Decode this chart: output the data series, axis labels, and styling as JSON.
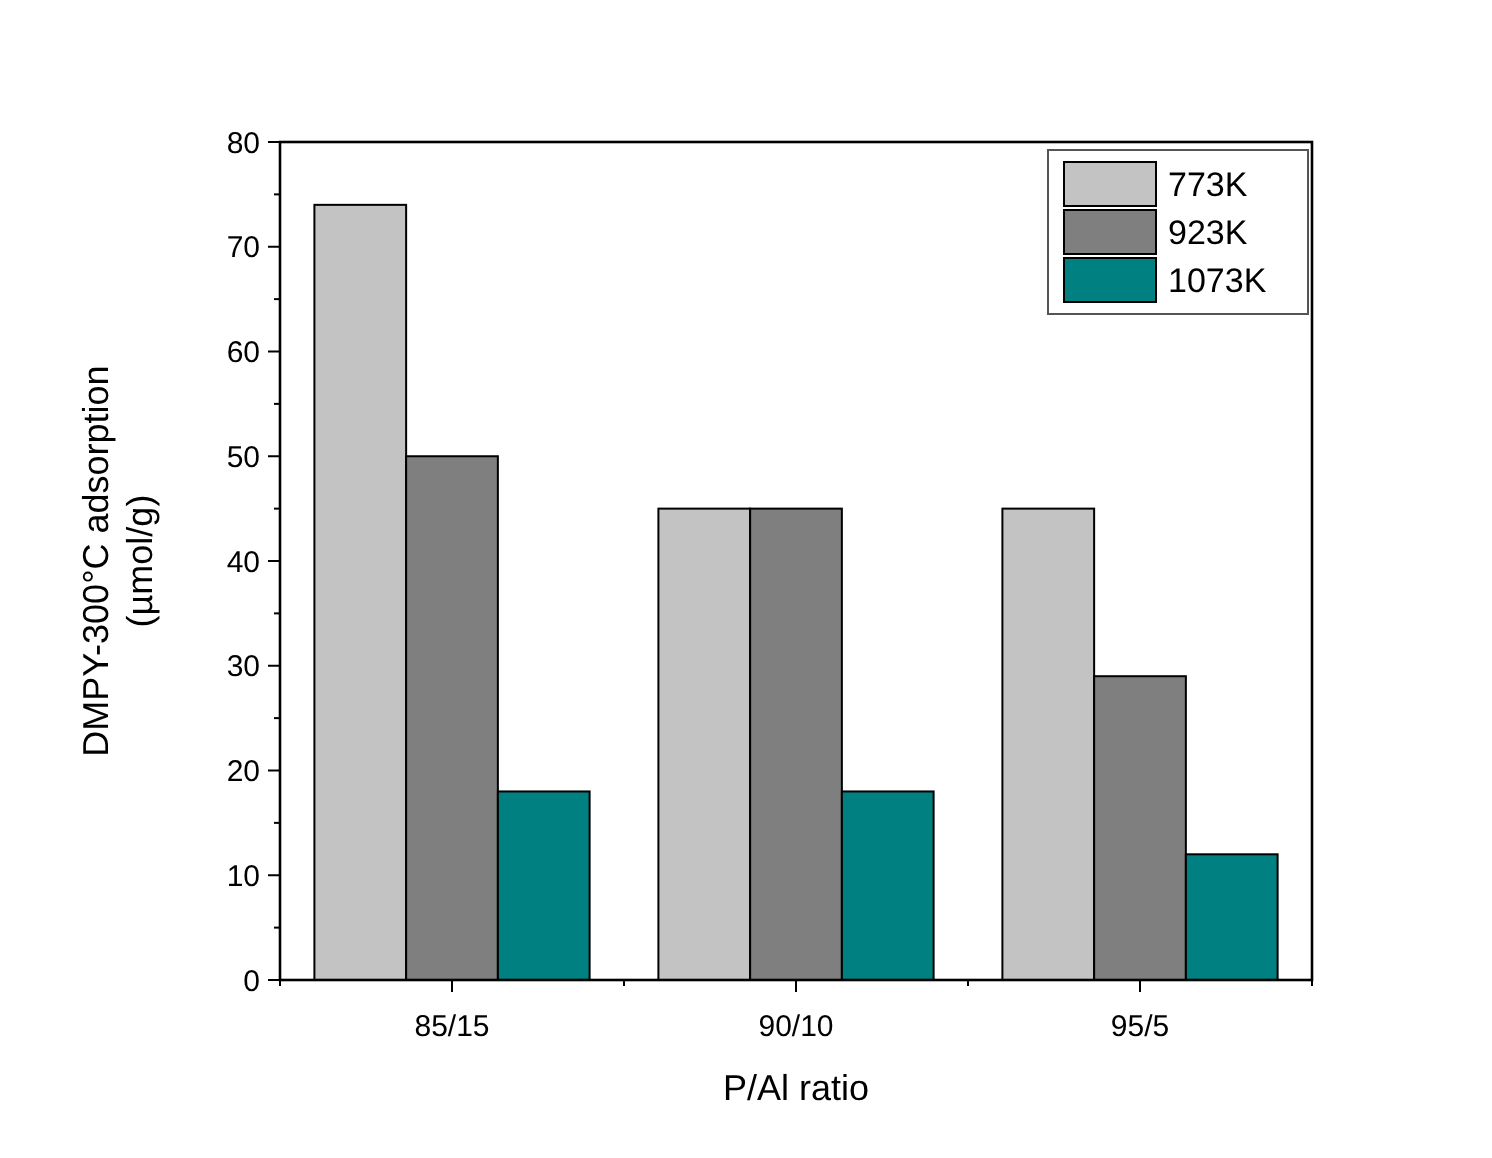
{
  "chart_data": {
    "type": "bar",
    "xlabel": "P/Al ratio",
    "ylabel": "DMPY-300°C adsorption\n(µmol/g)",
    "categories": [
      "85/15",
      "90/10",
      "95/5"
    ],
    "series": [
      {
        "name": "773K",
        "color": "#c3c3c3",
        "values": [
          74,
          45,
          45
        ]
      },
      {
        "name": "923K",
        "color": "#7f7f7f",
        "values": [
          50,
          45,
          29
        ]
      },
      {
        "name": "1073K",
        "color": "#008080",
        "values": [
          18,
          18,
          12
        ]
      }
    ],
    "ylim": [
      0,
      80
    ],
    "yticks": [
      0,
      10,
      20,
      30,
      40,
      50,
      60,
      70,
      80
    ],
    "grid": false,
    "legend": "top right"
  }
}
